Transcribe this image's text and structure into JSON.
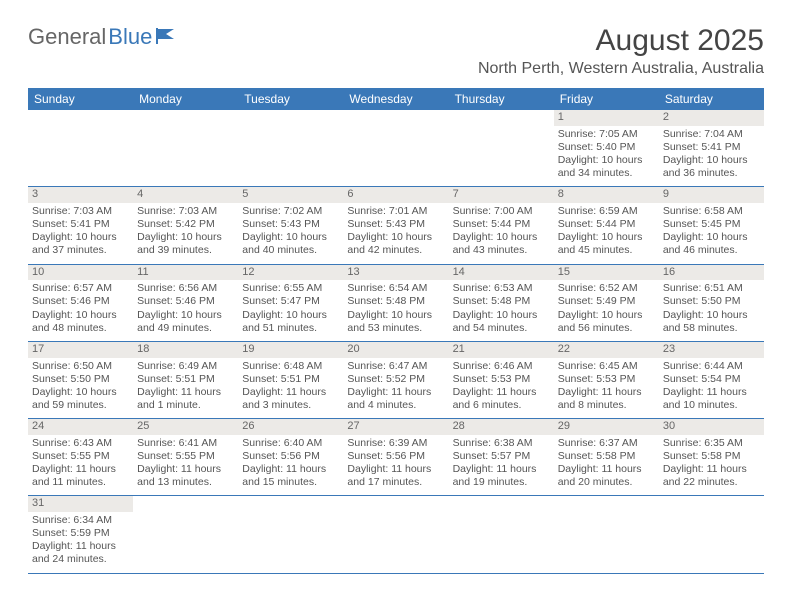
{
  "brand": {
    "general": "General",
    "blue": "Blue"
  },
  "title": "August 2025",
  "location": "North Perth, Western Australia, Australia",
  "header_color": "#3a78b8",
  "day_band_color": "#eceae7",
  "text_color": "#555555",
  "dayNames": [
    "Sunday",
    "Monday",
    "Tuesday",
    "Wednesday",
    "Thursday",
    "Friday",
    "Saturday"
  ],
  "weeks": [
    [
      {
        "empty": true
      },
      {
        "empty": true
      },
      {
        "empty": true
      },
      {
        "empty": true
      },
      {
        "empty": true
      },
      {
        "day": "1",
        "sunrise": "Sunrise: 7:05 AM",
        "sunset": "Sunset: 5:40 PM",
        "daylight1": "Daylight: 10 hours",
        "daylight2": "and 34 minutes."
      },
      {
        "day": "2",
        "sunrise": "Sunrise: 7:04 AM",
        "sunset": "Sunset: 5:41 PM",
        "daylight1": "Daylight: 10 hours",
        "daylight2": "and 36 minutes."
      }
    ],
    [
      {
        "day": "3",
        "sunrise": "Sunrise: 7:03 AM",
        "sunset": "Sunset: 5:41 PM",
        "daylight1": "Daylight: 10 hours",
        "daylight2": "and 37 minutes."
      },
      {
        "day": "4",
        "sunrise": "Sunrise: 7:03 AM",
        "sunset": "Sunset: 5:42 PM",
        "daylight1": "Daylight: 10 hours",
        "daylight2": "and 39 minutes."
      },
      {
        "day": "5",
        "sunrise": "Sunrise: 7:02 AM",
        "sunset": "Sunset: 5:43 PM",
        "daylight1": "Daylight: 10 hours",
        "daylight2": "and 40 minutes."
      },
      {
        "day": "6",
        "sunrise": "Sunrise: 7:01 AM",
        "sunset": "Sunset: 5:43 PM",
        "daylight1": "Daylight: 10 hours",
        "daylight2": "and 42 minutes."
      },
      {
        "day": "7",
        "sunrise": "Sunrise: 7:00 AM",
        "sunset": "Sunset: 5:44 PM",
        "daylight1": "Daylight: 10 hours",
        "daylight2": "and 43 minutes."
      },
      {
        "day": "8",
        "sunrise": "Sunrise: 6:59 AM",
        "sunset": "Sunset: 5:44 PM",
        "daylight1": "Daylight: 10 hours",
        "daylight2": "and 45 minutes."
      },
      {
        "day": "9",
        "sunrise": "Sunrise: 6:58 AM",
        "sunset": "Sunset: 5:45 PM",
        "daylight1": "Daylight: 10 hours",
        "daylight2": "and 46 minutes."
      }
    ],
    [
      {
        "day": "10",
        "sunrise": "Sunrise: 6:57 AM",
        "sunset": "Sunset: 5:46 PM",
        "daylight1": "Daylight: 10 hours",
        "daylight2": "and 48 minutes."
      },
      {
        "day": "11",
        "sunrise": "Sunrise: 6:56 AM",
        "sunset": "Sunset: 5:46 PM",
        "daylight1": "Daylight: 10 hours",
        "daylight2": "and 49 minutes."
      },
      {
        "day": "12",
        "sunrise": "Sunrise: 6:55 AM",
        "sunset": "Sunset: 5:47 PM",
        "daylight1": "Daylight: 10 hours",
        "daylight2": "and 51 minutes."
      },
      {
        "day": "13",
        "sunrise": "Sunrise: 6:54 AM",
        "sunset": "Sunset: 5:48 PM",
        "daylight1": "Daylight: 10 hours",
        "daylight2": "and 53 minutes."
      },
      {
        "day": "14",
        "sunrise": "Sunrise: 6:53 AM",
        "sunset": "Sunset: 5:48 PM",
        "daylight1": "Daylight: 10 hours",
        "daylight2": "and 54 minutes."
      },
      {
        "day": "15",
        "sunrise": "Sunrise: 6:52 AM",
        "sunset": "Sunset: 5:49 PM",
        "daylight1": "Daylight: 10 hours",
        "daylight2": "and 56 minutes."
      },
      {
        "day": "16",
        "sunrise": "Sunrise: 6:51 AM",
        "sunset": "Sunset: 5:50 PM",
        "daylight1": "Daylight: 10 hours",
        "daylight2": "and 58 minutes."
      }
    ],
    [
      {
        "day": "17",
        "sunrise": "Sunrise: 6:50 AM",
        "sunset": "Sunset: 5:50 PM",
        "daylight1": "Daylight: 10 hours",
        "daylight2": "and 59 minutes."
      },
      {
        "day": "18",
        "sunrise": "Sunrise: 6:49 AM",
        "sunset": "Sunset: 5:51 PM",
        "daylight1": "Daylight: 11 hours",
        "daylight2": "and 1 minute."
      },
      {
        "day": "19",
        "sunrise": "Sunrise: 6:48 AM",
        "sunset": "Sunset: 5:51 PM",
        "daylight1": "Daylight: 11 hours",
        "daylight2": "and 3 minutes."
      },
      {
        "day": "20",
        "sunrise": "Sunrise: 6:47 AM",
        "sunset": "Sunset: 5:52 PM",
        "daylight1": "Daylight: 11 hours",
        "daylight2": "and 4 minutes."
      },
      {
        "day": "21",
        "sunrise": "Sunrise: 6:46 AM",
        "sunset": "Sunset: 5:53 PM",
        "daylight1": "Daylight: 11 hours",
        "daylight2": "and 6 minutes."
      },
      {
        "day": "22",
        "sunrise": "Sunrise: 6:45 AM",
        "sunset": "Sunset: 5:53 PM",
        "daylight1": "Daylight: 11 hours",
        "daylight2": "and 8 minutes."
      },
      {
        "day": "23",
        "sunrise": "Sunrise: 6:44 AM",
        "sunset": "Sunset: 5:54 PM",
        "daylight1": "Daylight: 11 hours",
        "daylight2": "and 10 minutes."
      }
    ],
    [
      {
        "day": "24",
        "sunrise": "Sunrise: 6:43 AM",
        "sunset": "Sunset: 5:55 PM",
        "daylight1": "Daylight: 11 hours",
        "daylight2": "and 11 minutes."
      },
      {
        "day": "25",
        "sunrise": "Sunrise: 6:41 AM",
        "sunset": "Sunset: 5:55 PM",
        "daylight1": "Daylight: 11 hours",
        "daylight2": "and 13 minutes."
      },
      {
        "day": "26",
        "sunrise": "Sunrise: 6:40 AM",
        "sunset": "Sunset: 5:56 PM",
        "daylight1": "Daylight: 11 hours",
        "daylight2": "and 15 minutes."
      },
      {
        "day": "27",
        "sunrise": "Sunrise: 6:39 AM",
        "sunset": "Sunset: 5:56 PM",
        "daylight1": "Daylight: 11 hours",
        "daylight2": "and 17 minutes."
      },
      {
        "day": "28",
        "sunrise": "Sunrise: 6:38 AM",
        "sunset": "Sunset: 5:57 PM",
        "daylight1": "Daylight: 11 hours",
        "daylight2": "and 19 minutes."
      },
      {
        "day": "29",
        "sunrise": "Sunrise: 6:37 AM",
        "sunset": "Sunset: 5:58 PM",
        "daylight1": "Daylight: 11 hours",
        "daylight2": "and 20 minutes."
      },
      {
        "day": "30",
        "sunrise": "Sunrise: 6:35 AM",
        "sunset": "Sunset: 5:58 PM",
        "daylight1": "Daylight: 11 hours",
        "daylight2": "and 22 minutes."
      }
    ],
    [
      {
        "day": "31",
        "sunrise": "Sunrise: 6:34 AM",
        "sunset": "Sunset: 5:59 PM",
        "daylight1": "Daylight: 11 hours",
        "daylight2": "and 24 minutes."
      },
      {
        "empty": true
      },
      {
        "empty": true
      },
      {
        "empty": true
      },
      {
        "empty": true
      },
      {
        "empty": true
      },
      {
        "empty": true
      }
    ]
  ]
}
